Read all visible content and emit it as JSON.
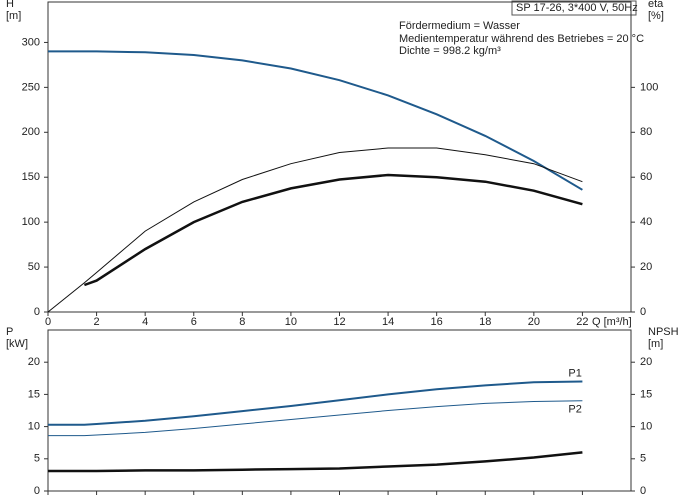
{
  "chart_data": [
    {
      "type": "line",
      "annotations": [
        "SP 17-26, 3*400 V, 50Hz",
        "Fördermedium = Wasser",
        "Medientemperatur während des Betriebes = 20 °C",
        "Dichte = 998.2 kg/m³"
      ],
      "xlabel": "Q [m³/h]",
      "ylabel": "H",
      "yunit": "[m]",
      "y2label": "eta",
      "y2unit": "[%]",
      "x": [
        0,
        1.5,
        2,
        4,
        6,
        8,
        10,
        12,
        14,
        16,
        18,
        20,
        22
      ],
      "xlim": [
        0,
        24
      ],
      "xticks": [
        0,
        2,
        4,
        6,
        8,
        10,
        12,
        14,
        16,
        18,
        20,
        22
      ],
      "ylim": [
        0,
        345
      ],
      "yticks": [
        0,
        50,
        100,
        150,
        200,
        250,
        300
      ],
      "y2lim": [
        0,
        138
      ],
      "y2ticks": [
        0,
        20,
        40,
        60,
        80,
        100
      ],
      "series": [
        {
          "color": "#1f5a8c",
          "width": 2,
          "values": [
            290,
            290,
            290,
            289,
            286,
            280,
            271,
            258,
            241,
            220,
            196,
            168,
            136
          ]
        },
        {
          "color": "#111111",
          "width": 1,
          "axis": "y2",
          "values": [
            0,
            13,
            17.6,
            36,
            49,
            59,
            66,
            71,
            73,
            73,
            70,
            66,
            58
          ]
        },
        {
          "color": "#111111",
          "width": 2.5,
          "axis": "y2",
          "values": [
            null,
            12,
            14,
            28,
            40,
            49,
            55,
            59,
            61,
            60,
            58,
            54,
            48
          ]
        }
      ]
    },
    {
      "type": "line",
      "ylabel": "P",
      "yunit": "[kW]",
      "y2label": "NPSH",
      "y2unit": "[m]",
      "x": [
        0,
        1.5,
        2,
        4,
        6,
        8,
        10,
        12,
        14,
        16,
        18,
        20,
        22
      ],
      "xlim": [
        0,
        24
      ],
      "ylim": [
        0,
        25
      ],
      "yticks": [
        0,
        5,
        10,
        15,
        20
      ],
      "y2lim": [
        0,
        25
      ],
      "y2ticks": [
        0,
        5,
        10,
        15,
        20
      ],
      "series": [
        {
          "name": "P1",
          "color": "#1f5a8c",
          "width": 2,
          "values": [
            10.3,
            10.3,
            10.4,
            10.9,
            11.6,
            12.4,
            13.2,
            14.1,
            15.0,
            15.8,
            16.4,
            16.9,
            17.0
          ]
        },
        {
          "name": "P2",
          "color": "#1f5a8c",
          "width": 1,
          "values": [
            8.6,
            8.6,
            8.7,
            9.1,
            9.7,
            10.4,
            11.1,
            11.8,
            12.5,
            13.1,
            13.6,
            13.9,
            14.0
          ]
        },
        {
          "color": "#111111",
          "width": 2.5,
          "axis": "y2",
          "values": [
            3.1,
            3.1,
            3.1,
            3.2,
            3.2,
            3.3,
            3.4,
            3.5,
            3.8,
            4.1,
            4.6,
            5.2,
            6.0
          ]
        }
      ]
    }
  ]
}
